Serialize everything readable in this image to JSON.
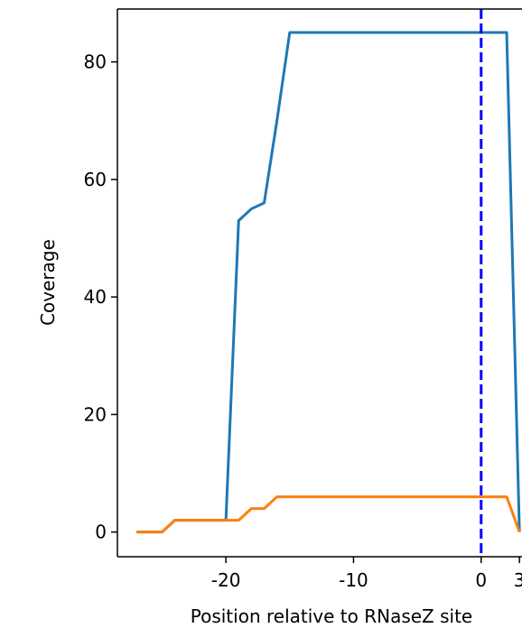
{
  "chart_data": {
    "type": "line",
    "title": "",
    "xlabel": "Position relative to RNaseZ site",
    "ylabel": "Coverage",
    "xlim": [
      -28.5,
      3.2
    ],
    "ylim": [
      -4.2,
      89
    ],
    "x_ticks": [
      -20,
      -10,
      0,
      3
    ],
    "x_tick_labels": [
      "-20",
      "-10",
      "0",
      "3"
    ],
    "y_ticks": [
      0,
      20,
      40,
      60,
      80
    ],
    "y_tick_labels": [
      "0",
      "20",
      "40",
      "60",
      "80"
    ],
    "grid": false,
    "legend": "none",
    "reference_line": {
      "axis": "x",
      "value": 0,
      "style": "dashed",
      "color": "#0000ff"
    },
    "series": [
      {
        "color": "#1f77b4",
        "x": [
          -27,
          -26,
          -25,
          -24,
          -23,
          -22,
          -21,
          -20,
          -19,
          -18,
          -17,
          -16,
          -15,
          -14,
          -13,
          -12,
          -11,
          -10,
          -9,
          -8,
          -7,
          -6,
          -5,
          -4,
          -3,
          -2,
          -1,
          0,
          1,
          2,
          3
        ],
        "values": [
          0,
          0,
          0,
          2,
          2,
          2,
          2,
          2,
          53,
          55,
          56,
          70,
          85,
          85,
          85,
          85,
          85,
          85,
          85,
          85,
          85,
          85,
          85,
          85,
          85,
          85,
          85,
          85,
          85,
          85,
          0
        ]
      },
      {
        "color": "#ff7f0e",
        "x": [
          -27,
          -26,
          -25,
          -24,
          -23,
          -22,
          -21,
          -20,
          -19,
          -18,
          -17,
          -16,
          -15,
          -14,
          -13,
          -12,
          -11,
          -10,
          -9,
          -8,
          -7,
          -6,
          -5,
          -4,
          -3,
          -2,
          -1,
          0,
          1,
          2,
          3
        ],
        "values": [
          0,
          0,
          0,
          2,
          2,
          2,
          2,
          2,
          2,
          4,
          4,
          6,
          6,
          6,
          6,
          6,
          6,
          6,
          6,
          6,
          6,
          6,
          6,
          6,
          6,
          6,
          6,
          6,
          6,
          6,
          0
        ]
      }
    ]
  }
}
